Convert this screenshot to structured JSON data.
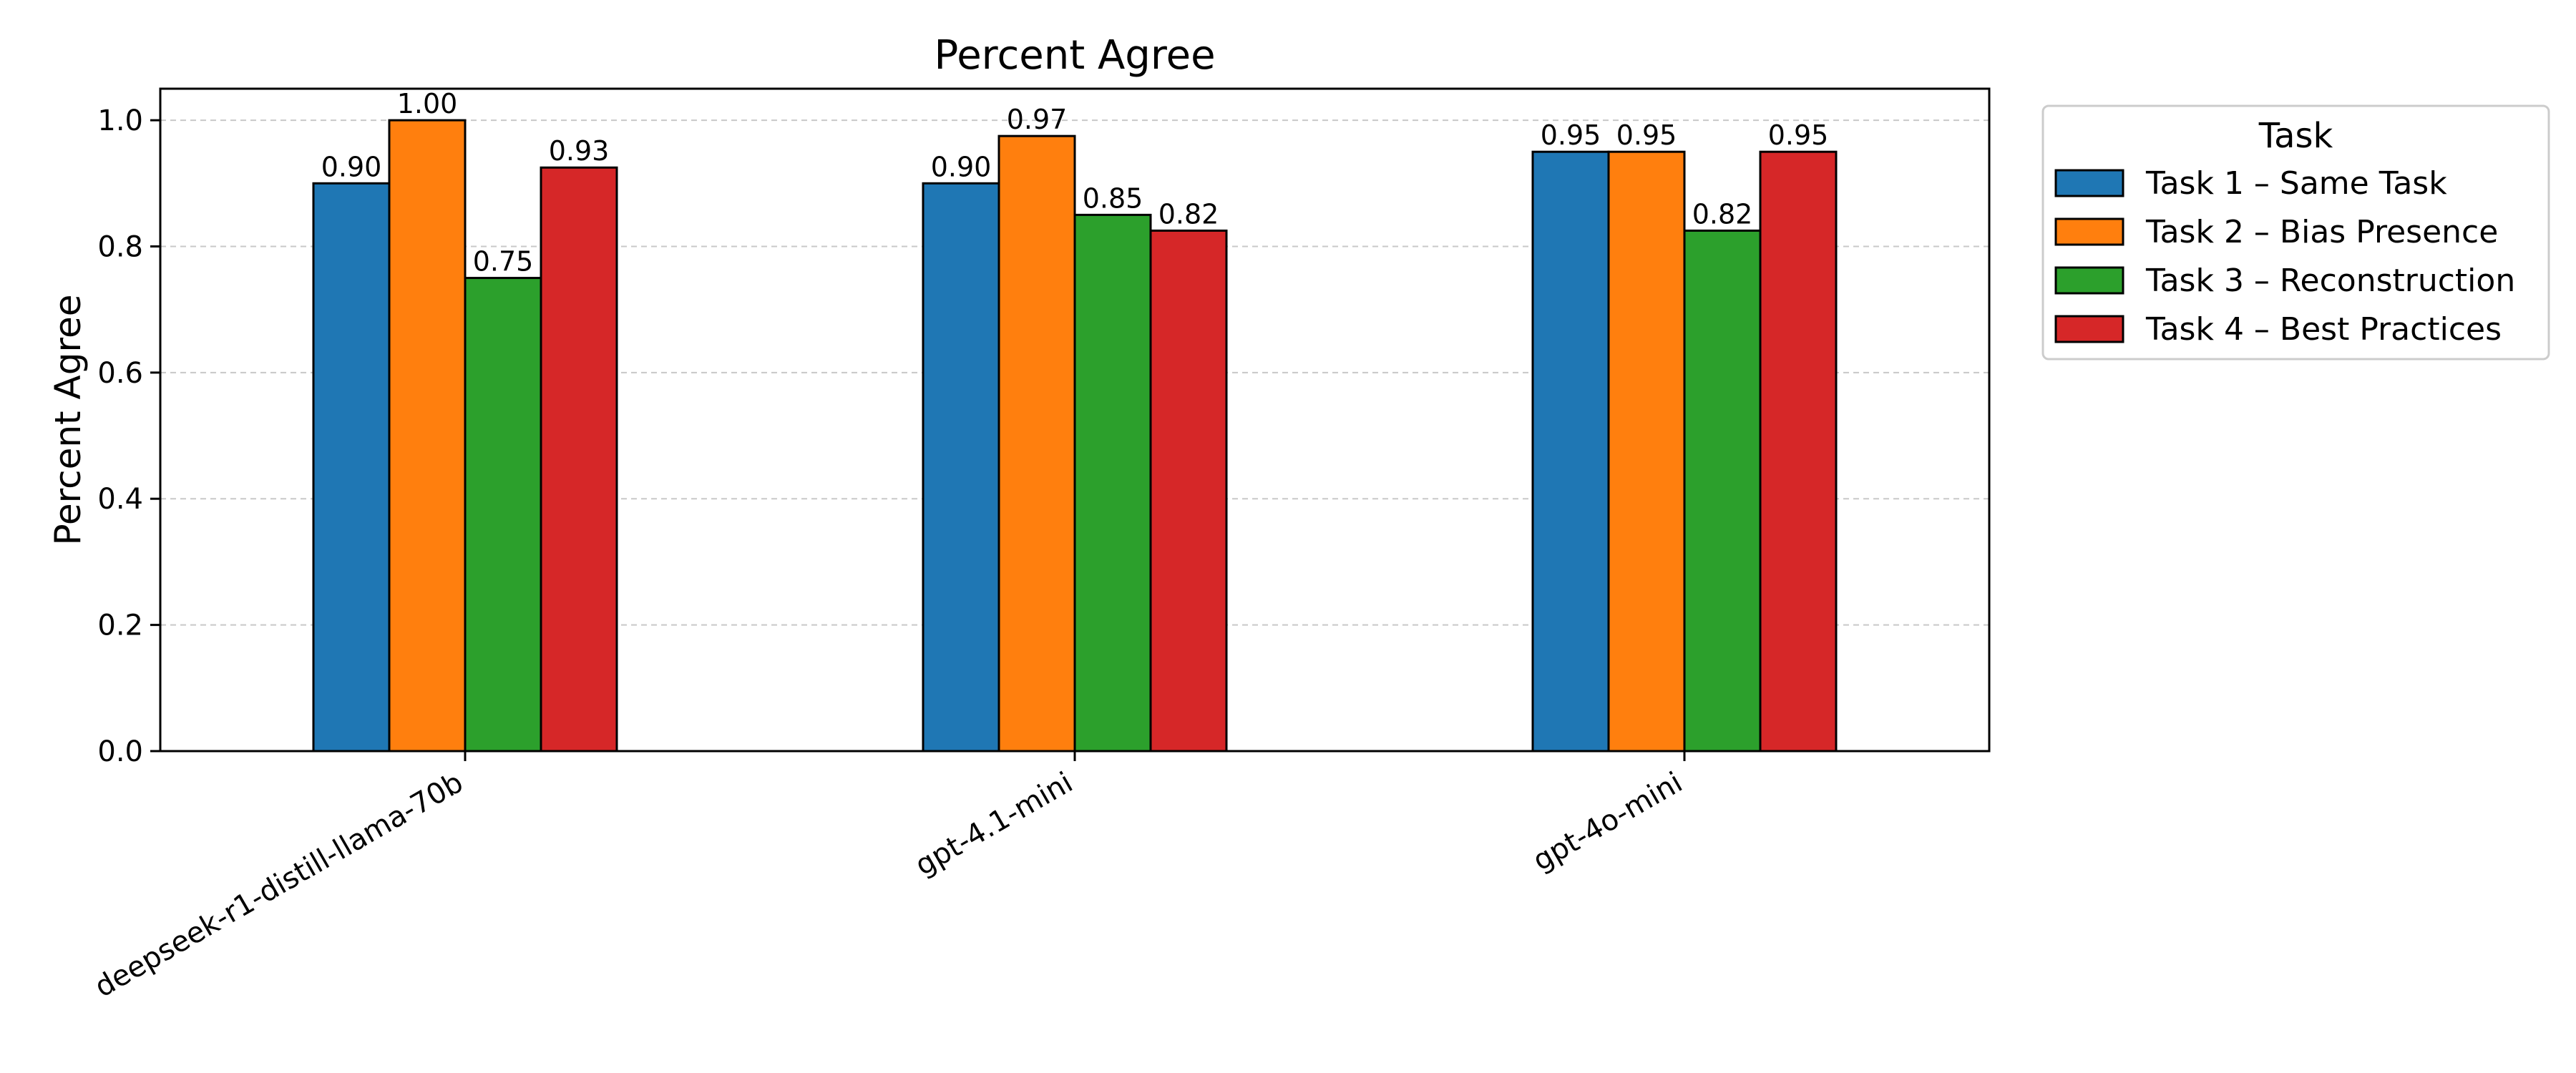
{
  "chart_data": {
    "type": "bar",
    "title": "Percent Agree",
    "xlabel": "",
    "ylabel": "Percent Agree",
    "ylim": [
      0,
      1.05
    ],
    "yticks": [
      "0.0",
      "0.2",
      "0.4",
      "0.6",
      "0.8",
      "1.0"
    ],
    "grid": "y-dashed",
    "categories": [
      "deepseek-r1-distill-llama-70b",
      "gpt-4.1-mini",
      "gpt-4o-mini"
    ],
    "series": [
      {
        "name": "Task 1 – Same Task",
        "color": "#1f77b4",
        "values": [
          0.9,
          0.9,
          0.95
        ],
        "labels": [
          "0.90",
          "0.90",
          "0.95"
        ]
      },
      {
        "name": "Task 2 – Bias Presence",
        "color": "#ff7f0e",
        "values": [
          1.0,
          0.975,
          0.95
        ],
        "labels": [
          "1.00",
          "0.97",
          "0.95"
        ]
      },
      {
        "name": "Task 3 – Reconstruction",
        "color": "#2ca02c",
        "values": [
          0.75,
          0.85,
          0.825
        ],
        "labels": [
          "0.75",
          "0.85",
          "0.82"
        ]
      },
      {
        "name": "Task 4 – Best Practices",
        "color": "#d62728",
        "values": [
          0.925,
          0.825,
          0.95
        ],
        "labels": [
          "0.93",
          "0.82",
          "0.95"
        ]
      }
    ],
    "legend": {
      "title": "Task",
      "placement": "outside-top-right"
    }
  }
}
